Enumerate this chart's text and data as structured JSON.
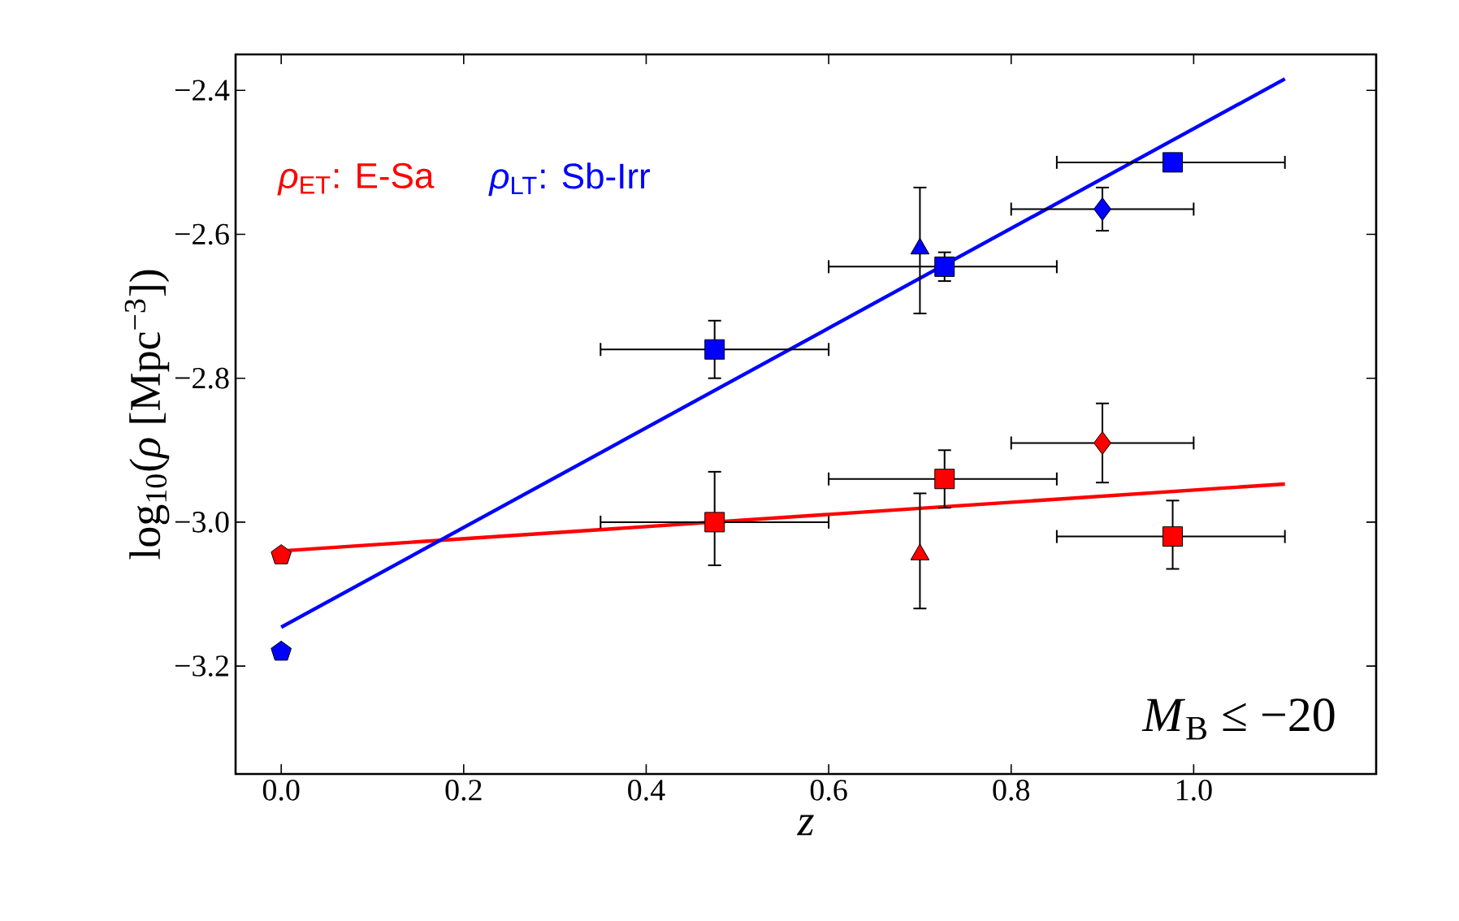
{
  "chart_data": {
    "type": "scatter",
    "xlabel": "*z*",
    "ylabel": "log$_{10}$(*ρ* [Mpc$^{−3}$])",
    "xlim": [
      -0.05,
      1.2
    ],
    "ylim": [
      -3.35,
      -2.35
    ],
    "xticks": [
      {
        "value": 0.0,
        "label": "0.0"
      },
      {
        "value": 0.2,
        "label": "0.2"
      },
      {
        "value": 0.4,
        "label": "0.4"
      },
      {
        "value": 0.6,
        "label": "0.6"
      },
      {
        "value": 0.8,
        "label": "0.8"
      },
      {
        "value": 1.0,
        "label": "1.0"
      }
    ],
    "yticks": [
      {
        "value": -3.2,
        "label": "−3.2"
      },
      {
        "value": -3.0,
        "label": "−3.0"
      },
      {
        "value": -2.8,
        "label": "−2.8"
      },
      {
        "value": -2.6,
        "label": "−2.6"
      },
      {
        "value": -2.4,
        "label": "−2.4"
      }
    ],
    "grid": false,
    "legend": "top left",
    "annotations": [
      "*M*$_{B}$ ≤ −20"
    ],
    "series": [
      {
        "type": "line",
        "name": "*ρ*$_{ET}$: E-Sa",
        "color": "#ff0000",
        "x": [
          0,
          1.1
        ],
        "values": [
          -3.04,
          -2.947
        ]
      },
      {
        "type": "line",
        "name": "*ρ*$_{LT}$: Sb-Irr",
        "color": "#0000ff",
        "x": [
          0,
          1.1
        ],
        "values": [
          -3.146,
          -2.384
        ]
      },
      {
        "color": "#ff0000",
        "x": [
          0.0
        ],
        "values": [
          -3.046
        ]
      },
      {
        "color": "#ff0000",
        "marker": "square",
        "x": [
          0.475,
          0.727,
          0.977
        ],
        "values": [
          -3.0,
          -2.94,
          -3.02
        ],
        "errors": [
          [
            -3.06,
            -2.93
          ],
          [
            -2.98,
            -2.9
          ],
          [
            -3.065,
            -2.97
          ]
        ],
        "xerrors": [
          [
            0.35,
            0.6
          ],
          [
            0.6,
            0.85
          ],
          [
            0.85,
            1.1
          ]
        ]
      },
      {
        "color": "#ff0000",
        "marker": "triangle",
        "x": [
          0.7
        ],
        "values": [
          -3.045
        ],
        "errors": [
          [
            -3.12,
            -2.96
          ]
        ]
      },
      {
        "color": "#ff0000",
        "marker": "diamond",
        "x": [
          0.9
        ],
        "values": [
          -2.89
        ],
        "errors": [
          [
            -2.945,
            -2.835
          ]
        ],
        "xerrors": [
          [
            0.8,
            1.0
          ]
        ]
      },
      {
        "color": "#0000ff",
        "x": [
          0.0
        ],
        "values": [
          -3.18
        ]
      },
      {
        "color": "#0000ff",
        "marker": "square",
        "x": [
          0.475,
          0.727,
          0.977
        ],
        "values": [
          -2.76,
          -2.645,
          -2.5
        ],
        "errors": [
          [
            -2.8,
            -2.72
          ],
          [
            -2.665,
            -2.625
          ],
          null
        ],
        "xerrors": [
          [
            0.35,
            0.6
          ],
          [
            0.6,
            0.85
          ],
          [
            0.85,
            1.1
          ]
        ]
      },
      {
        "color": "#0000ff",
        "marker": "triangle",
        "x": [
          0.7
        ],
        "values": [
          -2.62
        ],
        "errors": [
          [
            -2.71,
            -2.535
          ]
        ]
      },
      {
        "color": "#0000ff",
        "marker": "diamond",
        "x": [
          0.9
        ],
        "values": [
          -2.565
        ],
        "errors": [
          [
            -2.595,
            -2.535
          ]
        ],
        "xerrors": [
          [
            0.8,
            1.0
          ]
        ]
      }
    ]
  }
}
